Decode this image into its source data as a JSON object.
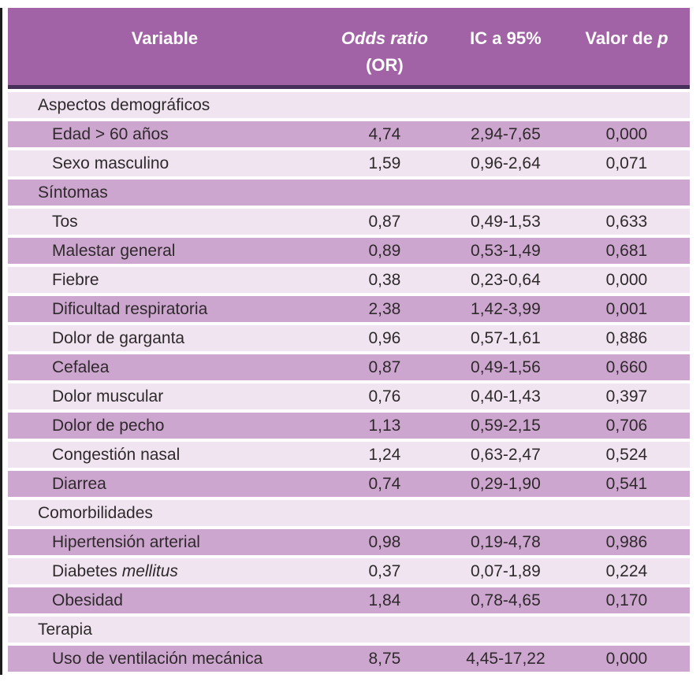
{
  "colors": {
    "page_bg": "#ffffff",
    "header_bg": "#a263a6",
    "header_text": "#ffffff",
    "header_rule": "#46305a",
    "row_light": "#f0e4f1",
    "row_dark": "#cda6cf",
    "text": "#2e2a2b",
    "edge_line": "#1c1c1c"
  },
  "table": {
    "columns": {
      "variable": "Variable",
      "odds_ratio_line1": "Odds ratio",
      "odds_ratio_line2": "(OR)",
      "confidence_interval": "IC a 95%",
      "p_value_prefix": "Valor de ",
      "p_value_symbol": "p"
    },
    "rows": [
      {
        "type": "section",
        "label": "Aspectos demográficos"
      },
      {
        "type": "data",
        "label": "Edad > 60 años",
        "or": "4,74",
        "ic": "2,94-7,65",
        "p": "0,000"
      },
      {
        "type": "data",
        "label": "Sexo masculino",
        "or": "1,59",
        "ic": "0,96-2,64",
        "p": "0,071"
      },
      {
        "type": "section",
        "label": "Síntomas"
      },
      {
        "type": "data",
        "label": "Tos",
        "or": "0,87",
        "ic": "0,49-1,53",
        "p": "0,633"
      },
      {
        "type": "data",
        "label": "Malestar general",
        "or": "0,89",
        "ic": "0,53-1,49",
        "p": "0,681"
      },
      {
        "type": "data",
        "label": "Fiebre",
        "or": "0,38",
        "ic": "0,23-0,64",
        "p": "0,000"
      },
      {
        "type": "data",
        "label": "Dificultad respiratoria",
        "or": "2,38",
        "ic": "1,42-3,99",
        "p": "0,001"
      },
      {
        "type": "data",
        "label": "Dolor de garganta",
        "or": "0,96",
        "ic": "0,57-1,61",
        "p": "0,886"
      },
      {
        "type": "data",
        "label": "Cefalea",
        "or": "0,87",
        "ic": "0,49-1,56",
        "p": "0,660"
      },
      {
        "type": "data",
        "label": "Dolor muscular",
        "or": "0,76",
        "ic": "0,40-1,43",
        "p": "0,397"
      },
      {
        "type": "data",
        "label": "Dolor de pecho",
        "or": "1,13",
        "ic": "0,59-2,15",
        "p": "0,706"
      },
      {
        "type": "data",
        "label": "Congestión nasal",
        "or": "1,24",
        "ic": "0,63-2,47",
        "p": "0,524"
      },
      {
        "type": "data",
        "label": "Diarrea",
        "or": "0,74",
        "ic": "0,29-1,90",
        "p": "0,541"
      },
      {
        "type": "section",
        "label": "Comorbilidades"
      },
      {
        "type": "data",
        "label": "Hipertensión arterial",
        "or": "0,98",
        "ic": "0,19-4,78",
        "p": "0,986"
      },
      {
        "type": "data",
        "label": "Diabetes ",
        "label_italic": "mellitus",
        "or": "0,37",
        "ic": "0,07-1,89",
        "p": "0,224"
      },
      {
        "type": "data",
        "label": "Obesidad",
        "or": "1,84",
        "ic": "0,78-4,65",
        "p": "0,170"
      },
      {
        "type": "section",
        "label": "Terapia"
      },
      {
        "type": "data",
        "label": "Uso de ventilación mecánica",
        "or": "8,75",
        "ic": "4,45-17,22",
        "p": "0,000"
      }
    ]
  }
}
